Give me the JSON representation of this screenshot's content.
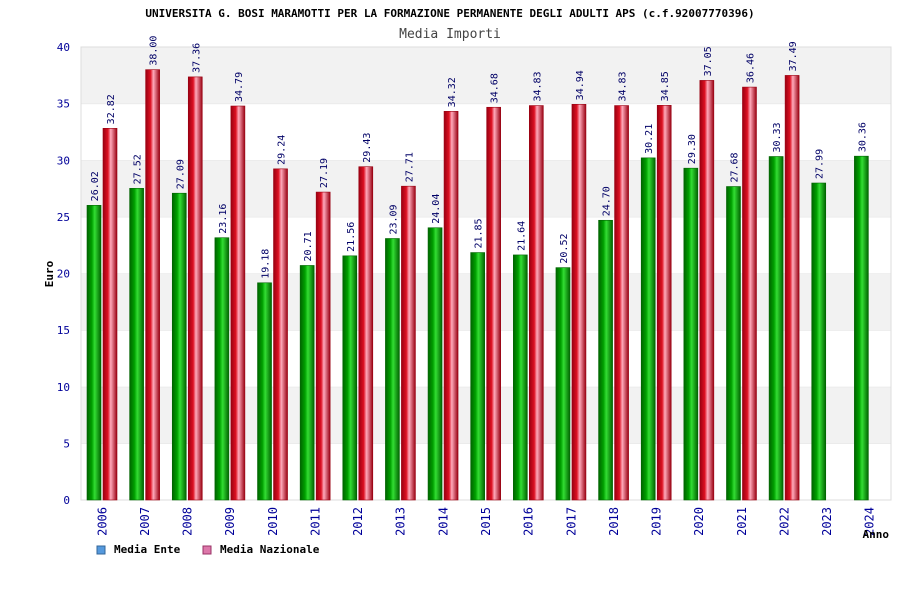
{
  "colors": {
    "ente": "#00a000",
    "ente_dark": "#006400",
    "ente_light": "#33dd33",
    "nazionale": "#dd1122",
    "nazionale_dark": "#990011",
    "nazionale_light": "#ffaabb",
    "legend_ente": "#5599dd",
    "legend_nazionale": "#dd77aa",
    "band": "#f2f2f2",
    "axis_text": "#000099"
  },
  "chart_data": {
    "type": "bar",
    "title": "UNIVERSITA G. BOSI MARAMOTTI PER LA FORMAZIONE PERMANENTE DEGLI ADULTI APS (c.f.92007770396)",
    "subtitle": "Media Importi",
    "xlabel": "Anno",
    "ylabel": "Euro",
    "ylim": [
      0,
      40
    ],
    "yticks": [
      0,
      5,
      10,
      15,
      20,
      25,
      30,
      35,
      40
    ],
    "categories": [
      "2006",
      "2007",
      "2008",
      "2009",
      "2010",
      "2011",
      "2012",
      "2013",
      "2014",
      "2015",
      "2016",
      "2017",
      "2018",
      "2019",
      "2020",
      "2021",
      "2022",
      "2023",
      "2024"
    ],
    "series": [
      {
        "name": "Media Ente",
        "values": [
          26.02,
          27.52,
          27.09,
          23.16,
          19.18,
          20.71,
          21.56,
          23.09,
          24.04,
          21.85,
          21.64,
          20.52,
          24.7,
          30.21,
          29.3,
          27.68,
          30.33,
          27.99,
          30.36
        ],
        "labels": [
          "26.02",
          "27.52",
          "27.09",
          "23.16",
          "19.18",
          "20.71",
          "21.56",
          "23.09",
          "24.04",
          "21.85",
          "21.64",
          "20.52",
          "24.70",
          "30.21",
          "29.30",
          "27.68",
          "30.33",
          "27.99",
          "30.36"
        ]
      },
      {
        "name": "Media Nazionale",
        "values": [
          32.82,
          38.0,
          37.36,
          34.79,
          29.24,
          27.19,
          29.43,
          27.71,
          34.32,
          34.68,
          34.83,
          34.94,
          34.83,
          34.85,
          37.05,
          36.46,
          37.49,
          null,
          null
        ],
        "labels": [
          "32.82",
          "38.00",
          "37.36",
          "34.79",
          "29.24",
          "27.19",
          "29.43",
          "27.71",
          "34.32",
          "34.68",
          "34.83",
          "34.94",
          "34.83",
          "34.85",
          "37.05",
          "36.46",
          "37.49",
          "",
          ""
        ]
      }
    ],
    "legend": [
      "Media Ente",
      "Media Nazionale"
    ],
    "grid": true
  }
}
